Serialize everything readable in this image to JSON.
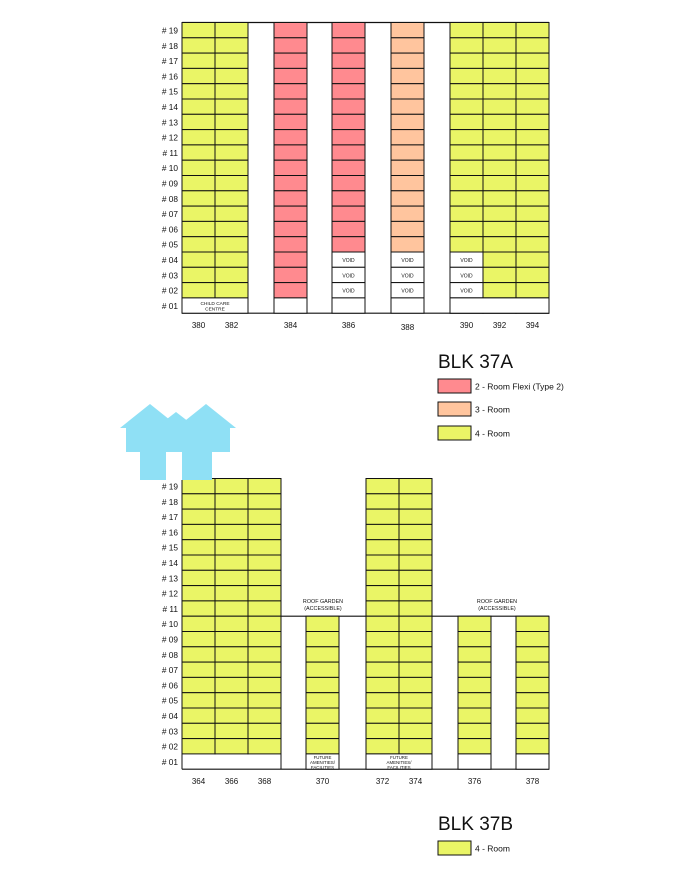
{
  "colors": {
    "flexi2": "#ff8a8f",
    "room3": "#ffc59e",
    "room4": "#eaf566",
    "void": "#ffffff",
    "grid": "#111111",
    "house_icon": "#8fe0f5"
  },
  "blk37a": {
    "title": "BLK 37A",
    "floor_labels": [
      "# 19",
      "# 18",
      "# 17",
      "# 16",
      "# 15",
      "# 14",
      "# 13",
      "# 12",
      "# 11",
      "# 10",
      "# 09",
      "# 08",
      "# 07",
      "# 06",
      "# 05",
      "# 04",
      "# 03",
      "# 02",
      "# 01"
    ],
    "child_care_label": [
      "CHILD CARE",
      "CENTRE"
    ],
    "void_label": "VOID",
    "columns": [
      {
        "unit": "380",
        "type": "room4",
        "ground": "child-care"
      },
      {
        "unit": "382",
        "type": "room4",
        "ground": "child-care"
      },
      {
        "unit": "384",
        "type": "flexi2",
        "ground": "empty"
      },
      {
        "unit": "386",
        "type": "flexi2",
        "void_floors": [
          2,
          3,
          4
        ],
        "ground": "empty"
      },
      {
        "unit": "388",
        "type": "room3",
        "void_floors": [
          2,
          3,
          4
        ],
        "ground": "empty"
      },
      {
        "unit": "390",
        "type": "room4",
        "void_floors": [
          2,
          3,
          4
        ],
        "ground": "empty"
      },
      {
        "unit": "392",
        "type": "room4",
        "ground": "empty"
      },
      {
        "unit": "394",
        "type": "room4",
        "ground": "empty"
      }
    ],
    "legend": [
      {
        "key": "flexi2",
        "label": "2 - Room Flexi (Type 2)"
      },
      {
        "key": "room3",
        "label": "3 - Room"
      },
      {
        "key": "room4",
        "label": "4 - Room"
      }
    ]
  },
  "blk37b": {
    "title": "BLK 37B",
    "floor_labels": [
      "# 19",
      "# 18",
      "# 17",
      "# 16",
      "# 15",
      "# 14",
      "# 13",
      "# 12",
      "# 11",
      "# 10",
      "# 09",
      "# 08",
      "# 07",
      "# 06",
      "# 05",
      "# 04",
      "# 03",
      "# 02",
      "# 01"
    ],
    "roof_garden_label": [
      "ROOF GARDEN",
      "(ACCESSIBLE)"
    ],
    "amenities_label": [
      "FUTURE",
      "AMENITIES/",
      "FACILITIES"
    ],
    "columns": [
      {
        "unit": "364",
        "top_floor": 19
      },
      {
        "unit": "366",
        "top_floor": 19
      },
      {
        "unit": "368",
        "top_floor": 19
      },
      {
        "unit": "370",
        "top_floor": 10
      },
      {
        "unit": "372",
        "top_floor": 19
      },
      {
        "unit": "374",
        "top_floor": 19
      },
      {
        "unit": "376",
        "top_floor": 10
      },
      {
        "unit": "378",
        "top_floor": 10
      }
    ],
    "legend": [
      {
        "key": "room4",
        "label": "4 - Room"
      }
    ]
  }
}
